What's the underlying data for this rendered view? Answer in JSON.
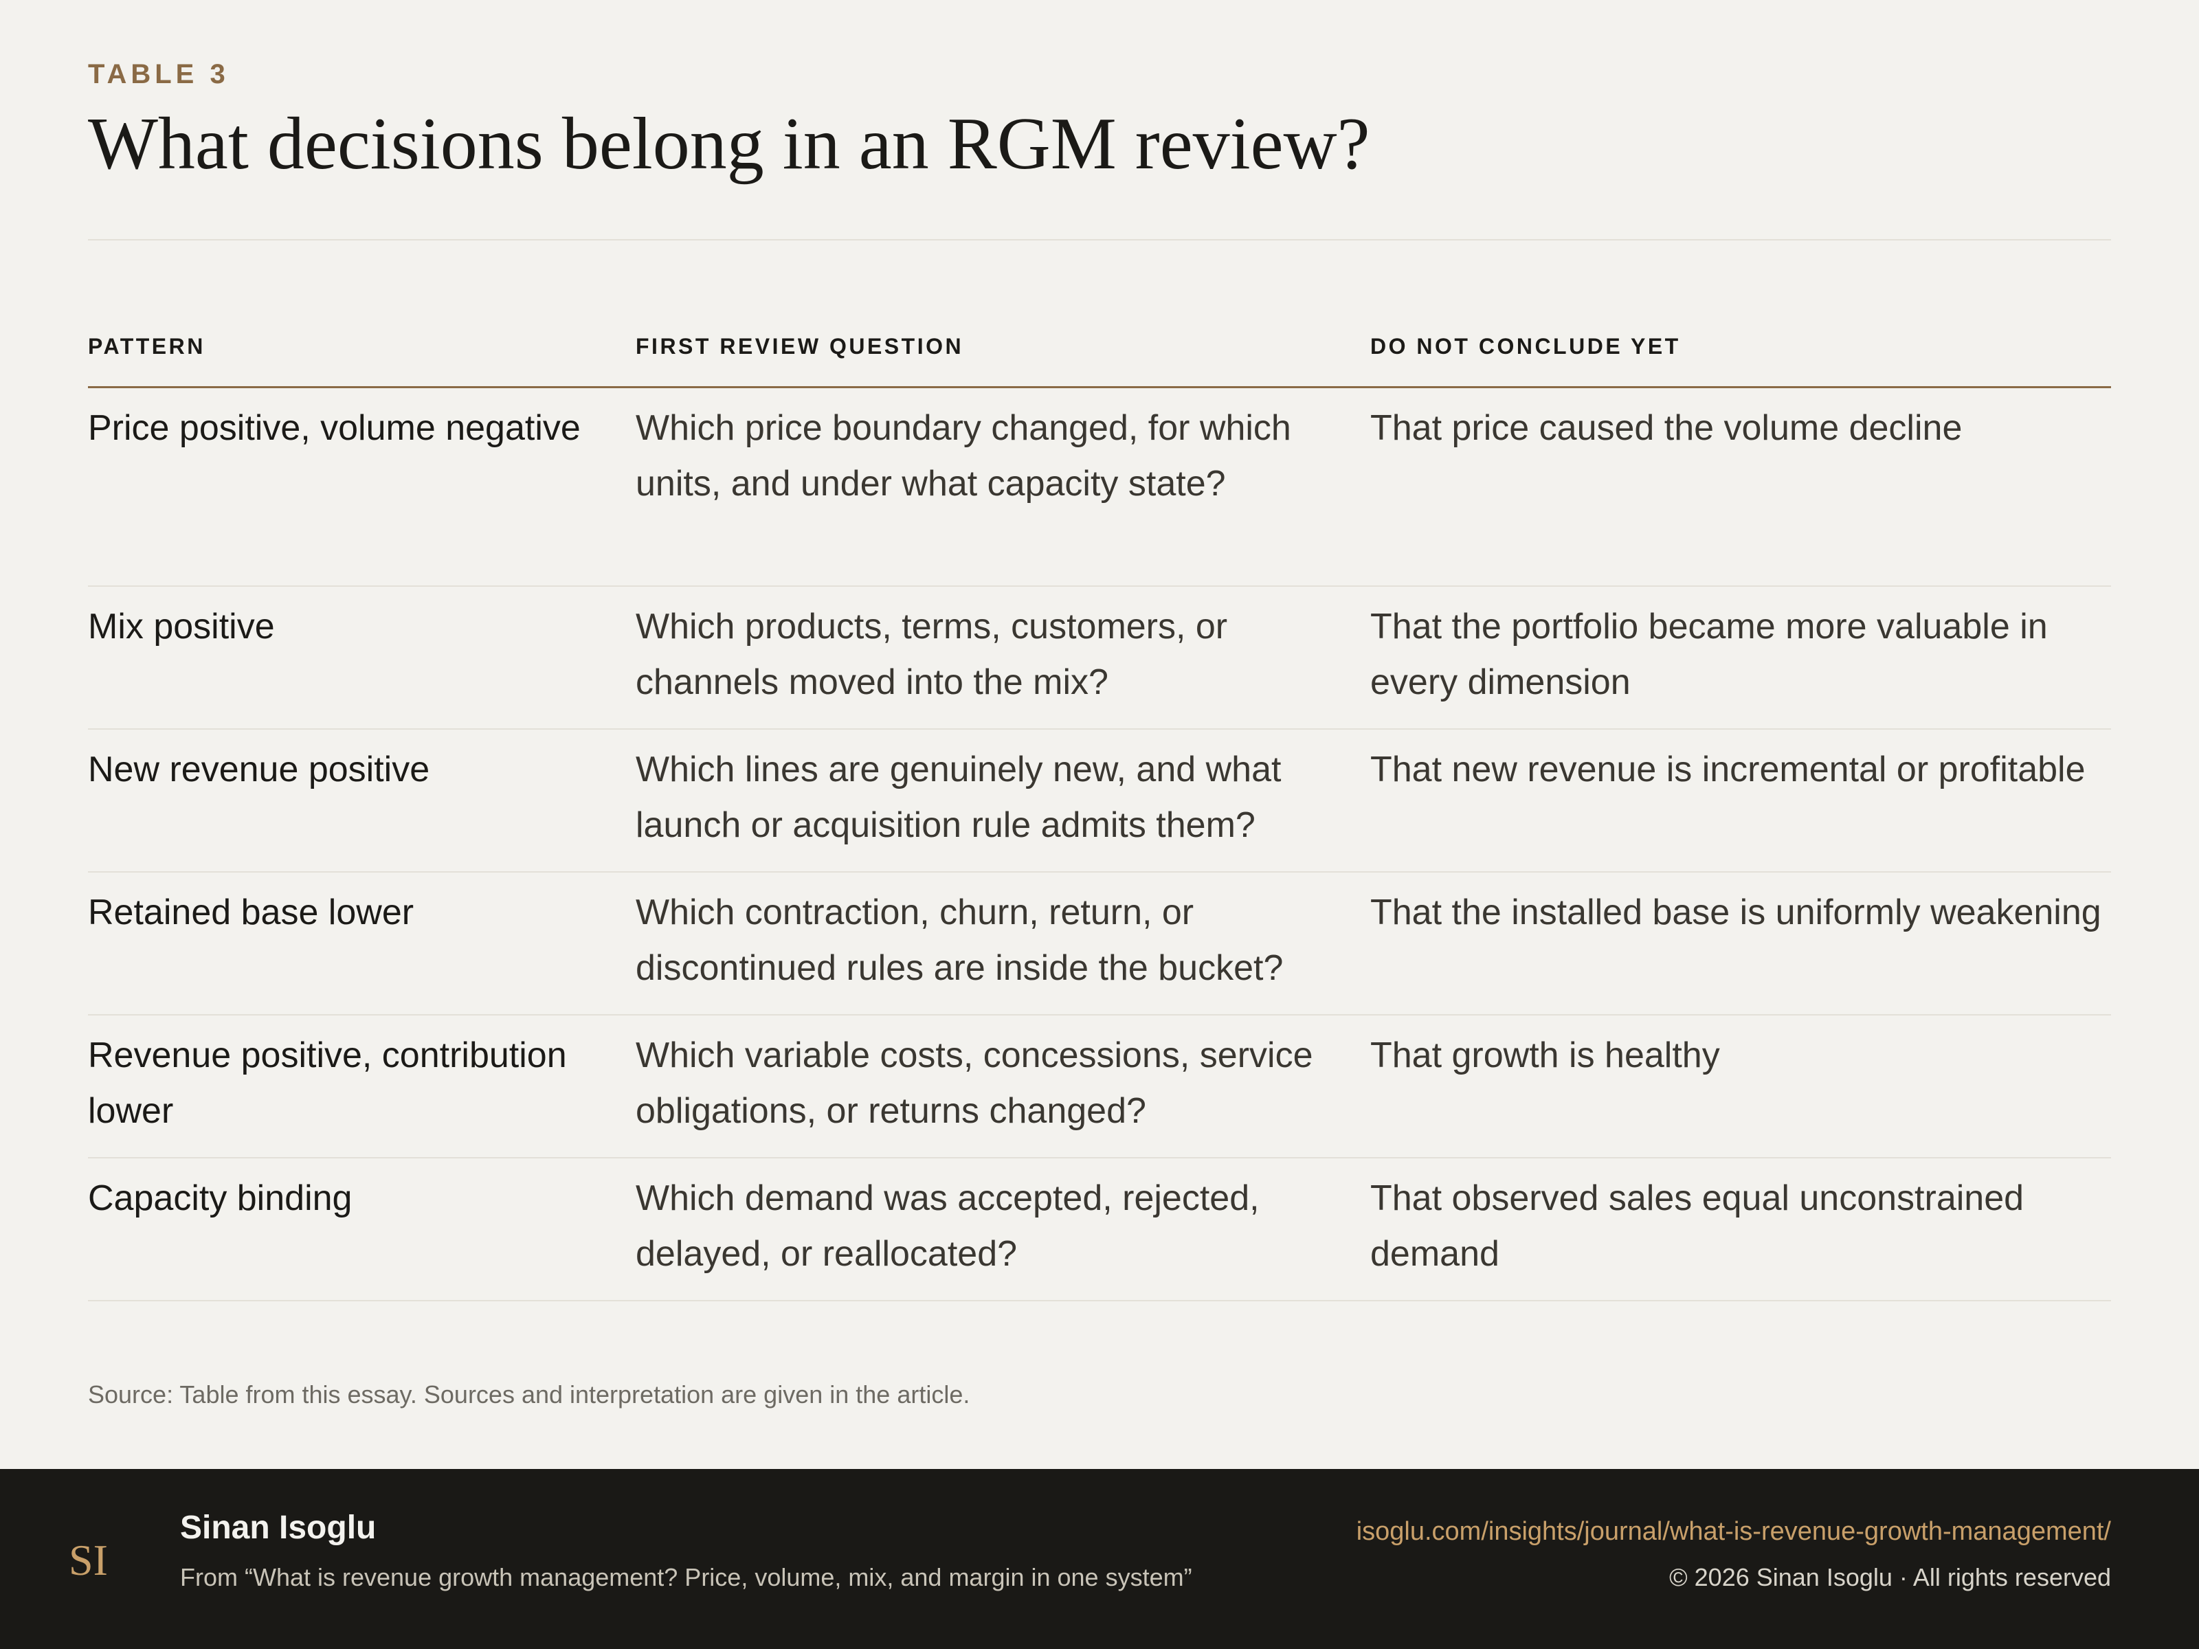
{
  "header": {
    "eyebrow": "TABLE 3",
    "title": "What decisions belong in an RGM review?"
  },
  "table": {
    "columns": [
      "PATTERN",
      "FIRST REVIEW QUESTION",
      "DO NOT CONCLUDE YET"
    ],
    "rows": [
      [
        "Price positive, volume negative",
        "Which price boundary changed, for which units, and under what capacity state?",
        "That price caused the volume decline"
      ],
      [
        "Mix positive",
        "Which products, terms, customers, or channels moved into the mix?",
        "That the portfolio became more valuable in every dimension"
      ],
      [
        "New revenue positive",
        "Which lines are genuinely new, and what launch or acquisition rule admits them?",
        "That new revenue is incremental or profitable"
      ],
      [
        "Retained base lower",
        "Which contraction, churn, return, or discontinued rules are inside the bucket?",
        "That the installed base is uniformly weakening"
      ],
      [
        "Revenue positive, contribution lower",
        "Which variable costs, concessions, service obligations, or returns changed?",
        "That growth is healthy"
      ],
      [
        "Capacity binding",
        "Which demand was accepted, rejected, delayed, or reallocated?",
        "That observed sales equal unconstrained demand"
      ]
    ]
  },
  "source": "Source: Table from this essay. Sources and interpretation are given in the article.",
  "footer": {
    "monogram": "SI",
    "author": "Sinan Isoglu",
    "from": "From “What is revenue growth management? Price, volume, mix, and margin in one system”",
    "url": "isoglu.com/insights/journal/what-is-revenue-growth-management/",
    "copyright": "© 2026 Sinan Isoglu · All rights reserved"
  },
  "colors": {
    "background": "#f3f2ee",
    "accent": "#8a6a45",
    "footer_bg": "#1a1916",
    "link": "#c9a06a"
  }
}
